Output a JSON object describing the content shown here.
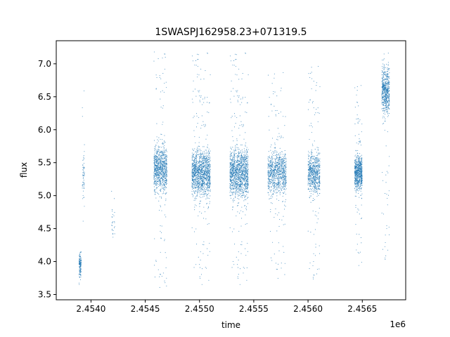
{
  "chart_data": {
    "type": "scatter",
    "title": "1SWASPJ162958.23+071319.5",
    "xlabel": "time",
    "ylabel": "flux",
    "x_offset_label": "1e6",
    "xlim": [
      2.45368,
      2.4569
    ],
    "ylim": [
      3.42,
      7.35
    ],
    "grid": false,
    "legend": "none",
    "marker_color": "#1f77b4",
    "x_ticks": [
      {
        "value": 2.454,
        "label": "2.4540"
      },
      {
        "value": 2.4545,
        "label": "2.4545"
      },
      {
        "value": 2.455,
        "label": "2.4550"
      },
      {
        "value": 2.4555,
        "label": "2.4555"
      },
      {
        "value": 2.456,
        "label": "2.4560"
      },
      {
        "value": 2.4565,
        "label": "2.4565"
      }
    ],
    "y_ticks": [
      {
        "value": 3.5,
        "label": "3.5"
      },
      {
        "value": 4.0,
        "label": "4.0"
      },
      {
        "value": 4.5,
        "label": "4.5"
      },
      {
        "value": 5.0,
        "label": "5.0"
      },
      {
        "value": 5.5,
        "label": "5.5"
      },
      {
        "value": 6.0,
        "label": "6.0"
      },
      {
        "value": 6.5,
        "label": "6.5"
      },
      {
        "value": 7.0,
        "label": "7.0"
      }
    ],
    "clusters": [
      {
        "x": [
          2.45389,
          2.45391
        ],
        "y_center": 3.95,
        "y_spread": 0.15,
        "y_min": 3.6,
        "y_max": 4.2,
        "n": 140,
        "density": "dense"
      },
      {
        "x": [
          2.45392,
          2.45394
        ],
        "y_center": 5.35,
        "y_spread": 0.3,
        "y_min": 4.6,
        "y_max": 6.6,
        "n": 60,
        "density": "sparse"
      },
      {
        "x": [
          2.45419,
          2.45422
        ],
        "y_center": 4.6,
        "y_spread": 0.2,
        "y_min": 4.1,
        "y_max": 5.25,
        "n": 25,
        "density": "sparse"
      },
      {
        "x": [
          2.45458,
          2.4547
        ],
        "y_center": 5.4,
        "y_spread": 0.3,
        "y_min": 3.6,
        "y_max": 7.2,
        "n": 900,
        "density": "dense"
      },
      {
        "x": [
          2.45493,
          2.4551
        ],
        "y_center": 5.35,
        "y_spread": 0.3,
        "y_min": 3.6,
        "y_max": 7.2,
        "n": 1300,
        "density": "dense"
      },
      {
        "x": [
          2.45528,
          2.45545
        ],
        "y_center": 5.35,
        "y_spread": 0.32,
        "y_min": 3.6,
        "y_max": 7.2,
        "n": 1300,
        "density": "dense"
      },
      {
        "x": [
          2.45563,
          2.4558
        ],
        "y_center": 5.35,
        "y_spread": 0.28,
        "y_min": 3.7,
        "y_max": 6.9,
        "n": 900,
        "density": "medium"
      },
      {
        "x": [
          2.456,
          2.45611
        ],
        "y_center": 5.35,
        "y_spread": 0.27,
        "y_min": 3.6,
        "y_max": 7.0,
        "n": 700,
        "density": "medium"
      },
      {
        "x": [
          2.45643,
          2.4565
        ],
        "y_center": 5.35,
        "y_spread": 0.22,
        "y_min": 3.9,
        "y_max": 6.7,
        "n": 700,
        "density": "dense"
      },
      {
        "x": [
          2.45668,
          2.45675
        ],
        "y_center": 6.6,
        "y_spread": 0.3,
        "y_min": 3.9,
        "y_max": 7.2,
        "n": 600,
        "density": "dense"
      }
    ]
  }
}
